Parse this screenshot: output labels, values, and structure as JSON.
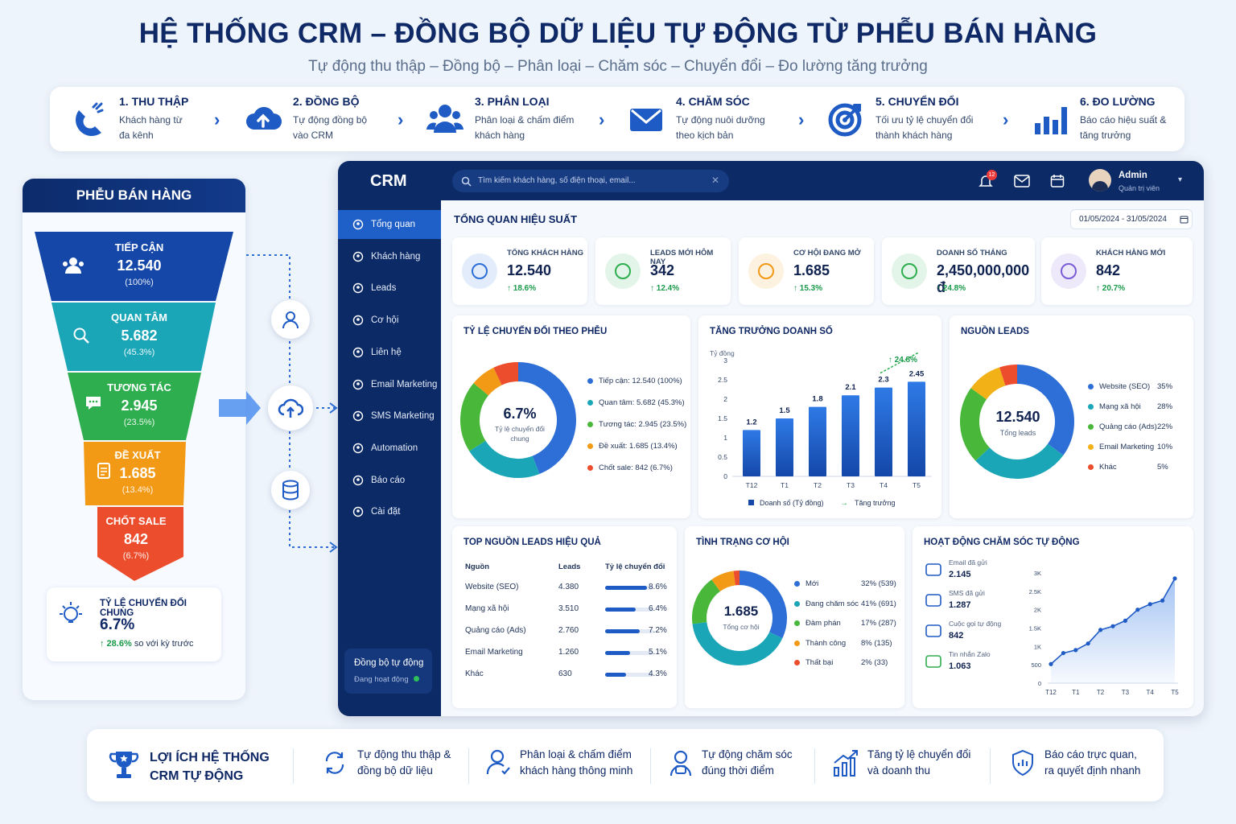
{
  "header": {
    "title": "HỆ THỐNG CRM – ĐỒNG BỘ DỮ LIỆU TỰ ĐỘNG TỪ PHỄU BÁN HÀNG",
    "subtitle": "Tự động thu thập – Đồng bộ – Phân loại – Chăm sóc – Chuyển đổi – Đo lường tăng trưởng"
  },
  "steps": [
    {
      "title": "1. THU THẬP",
      "desc1": "Khách hàng từ",
      "desc2": "đa kênh",
      "icon": "magnet-icon"
    },
    {
      "title": "2. ĐỒNG BỘ",
      "desc1": "Tự động đồng bộ",
      "desc2": "vào CRM",
      "icon": "cloud-upload-icon"
    },
    {
      "title": "3. PHÂN LOẠI",
      "desc1": "Phân loại & chấm điểm",
      "desc2": "khách hàng",
      "icon": "users-icon"
    },
    {
      "title": "4. CHĂM SÓC",
      "desc1": "Tự động nuôi dưỡng",
      "desc2": "theo kịch bản",
      "icon": "mail-icon"
    },
    {
      "title": "5. CHUYỂN ĐỔI",
      "desc1": "Tối ưu tỷ lệ chuyển đổi",
      "desc2": "thành khách hàng",
      "icon": "target-icon"
    },
    {
      "title": "6. ĐO LƯỜNG",
      "desc1": "Báo cáo hiệu suất &",
      "desc2": "tăng trưởng",
      "icon": "bar-chart-icon"
    }
  ],
  "funnel": {
    "title": "PHỄU BÁN HÀNG",
    "levels": [
      {
        "name": "TIẾP CẬN",
        "value": "12.540",
        "pct": "(100%)",
        "color": "#1447a8"
      },
      {
        "name": "QUAN TÂM",
        "value": "5.682",
        "pct": "(45.3%)",
        "color": "#1ba6b8"
      },
      {
        "name": "TƯƠNG TÁC",
        "value": "2.945",
        "pct": "(23.5%)",
        "color": "#2fae4f"
      },
      {
        "name": "ĐỀ XUẤT",
        "value": "1.685",
        "pct": "(13.4%)",
        "color": "#f29a16"
      },
      {
        "name": "CHỐT SALE",
        "value": "842",
        "pct": "(6.7%)",
        "color": "#ec4d2c"
      }
    ],
    "rate": {
      "label": "TỶ LỆ CHUYỂN ĐỔI CHUNG",
      "value": "6.7%",
      "change": "↑ 28.6%",
      "change_note": "so với kỳ trước"
    }
  },
  "app": {
    "logo": "CRM",
    "search_placeholder": "Tìm kiếm khách hàng, số điện thoại, email...",
    "notif_count": "12",
    "user_name": "Admin",
    "user_role": "Quản trị viên",
    "nav": [
      "Tổng quan",
      "Khách hàng",
      "Leads",
      "Cơ hội",
      "Liên hệ",
      "Email Marketing",
      "SMS Marketing",
      "Automation",
      "Báo cáo",
      "Cài đặt"
    ],
    "sync": {
      "title": "Đồng bộ tự động",
      "status": "Đang hoạt động"
    },
    "overview_title": "TỔNG QUAN HIỆU SUẤT",
    "date_range": "01/05/2024 - 31/05/2024",
    "kpis": [
      {
        "label": "TỔNG KHÁCH HÀNG",
        "value": "12.540",
        "change": "↑ 18.6%",
        "color": "#2d6fd6"
      },
      {
        "label": "LEADS MỚI HÔM NAY",
        "value": "342",
        "change": "↑ 12.4%",
        "color": "#2fae4f"
      },
      {
        "label": "CƠ HỘI ĐANG MỞ",
        "value": "1.685",
        "change": "↑ 15.3%",
        "color": "#f29a16"
      },
      {
        "label": "DOANH SỐ THÁNG",
        "value": "2,450,000,000 đ",
        "change": "↑ 24.8%",
        "color": "#2fae4f"
      },
      {
        "label": "KHÁCH HÀNG MỚI",
        "value": "842",
        "change": "↑ 20.7%",
        "color": "#7a5cd6"
      }
    ],
    "conversion": {
      "title": "TỶ LỆ CHUYỂN ĐỔI THEO PHỄU",
      "center_value": "6.7%",
      "center_label1": "Tỷ lệ chuyển đổi",
      "center_label2": "chung",
      "segments": [
        {
          "label": "Tiếp cận: 12.540 (100%)",
          "color": "#2d6fd6",
          "share": 44
        },
        {
          "label": "Quan tâm: 5.682 (45.3%)",
          "color": "#1ba6b8",
          "share": 22
        },
        {
          "label": "Tương tác: 2.945 (23.5%)",
          "color": "#49b83a",
          "share": 20
        },
        {
          "label": "Đề xuất: 1.685 (13.4%)",
          "color": "#f29a16",
          "share": 7
        },
        {
          "label": "Chốt sale: 842 (6.7%)",
          "color": "#ec4d2c",
          "share": 7
        }
      ]
    },
    "revenue": {
      "title": "TĂNG TRƯỞNG DOANH SỐ",
      "unit": "Tỷ đồng",
      "growth": "↑ 24.8%",
      "legend_bar": "Doanh số (Tỷ đồng)",
      "legend_line": "Tăng trưởng"
    },
    "sources": {
      "title": "NGUỒN LEADS",
      "center_value": "12.540",
      "center_label": "Tổng leads",
      "items": [
        {
          "name": "Website (SEO)",
          "pct": "35%",
          "color": "#2d6fd6",
          "share": 35
        },
        {
          "name": "Mạng xã hội",
          "pct": "28%",
          "color": "#1ba6b8",
          "share": 28
        },
        {
          "name": "Quảng cáo (Ads)",
          "pct": "22%",
          "color": "#49b83a",
          "share": 22
        },
        {
          "name": "Email Marketing",
          "pct": "10%",
          "color": "#f2b116",
          "share": 10
        },
        {
          "name": "Khác",
          "pct": "5%",
          "color": "#ec4d2c",
          "share": 5
        }
      ]
    },
    "top_sources": {
      "title": "TOP NGUỒN LEADS HIỆU QUẢ",
      "headers": [
        "Nguồn",
        "Leads",
        "Tỷ lệ chuyển đổi"
      ],
      "rows": [
        {
          "name": "Website (SEO)",
          "leads": "4.380",
          "rate": "8.6%",
          "r": 8.6
        },
        {
          "name": "Mạng xã hội",
          "leads": "3.510",
          "rate": "6.4%",
          "r": 6.4
        },
        {
          "name": "Quảng cáo (Ads)",
          "leads": "2.760",
          "rate": "7.2%",
          "r": 7.2
        },
        {
          "name": "Email Marketing",
          "leads": "1.260",
          "rate": "5.1%",
          "r": 5.1
        },
        {
          "name": "Khác",
          "leads": "630",
          "rate": "4.3%",
          "r": 4.3
        }
      ]
    },
    "opportunities": {
      "title": "TÌNH TRẠNG CƠ HỘI",
      "center_value": "1.685",
      "center_label": "Tổng cơ hội",
      "items": [
        {
          "name": "Mới",
          "val": "32% (539)",
          "color": "#2d6fd6",
          "share": 32
        },
        {
          "name": "Đang chăm sóc",
          "val": "41% (691)",
          "color": "#1ba6b8",
          "share": 41
        },
        {
          "name": "Đàm phán",
          "val": "17% (287)",
          "color": "#49b83a",
          "share": 17
        },
        {
          "name": "Thành công",
          "val": "8% (135)",
          "color": "#f29a16",
          "share": 8
        },
        {
          "name": "Thất bại",
          "val": "2% (33)",
          "color": "#ec4d2c",
          "share": 2
        }
      ]
    },
    "automation": {
      "title": "HOẠT ĐỘNG CHĂM SÓC TỰ ĐỘNG",
      "items": [
        {
          "label": "Email đã gửi",
          "value": "2.145"
        },
        {
          "label": "SMS đã gửi",
          "value": "1.287"
        },
        {
          "label": "Cuộc gọi tự động",
          "value": "842"
        },
        {
          "label": "Tin nhắn Zalo",
          "value": "1.063"
        }
      ]
    }
  },
  "benefits": {
    "title1": "LỢI ÍCH HỆ THỐNG",
    "title2": "CRM TỰ ĐỘNG",
    "items": [
      {
        "l1": "Tự động thu thập &",
        "l2": "đồng bộ dữ liệu"
      },
      {
        "l1": "Phân loại & chấm điểm",
        "l2": "khách hàng thông minh"
      },
      {
        "l1": "Tự động chăm sóc",
        "l2": "đúng thời điểm"
      },
      {
        "l1": "Tăng tỷ lệ chuyển đổi",
        "l2": "và doanh thu"
      },
      {
        "l1": "Báo cáo trực quan,",
        "l2": "ra quyết định nhanh"
      }
    ]
  },
  "chart_data": [
    {
      "type": "bar",
      "title": "TĂNG TRƯỞNG DOANH SỐ",
      "ylabel": "Tỷ đồng",
      "categories": [
        "T12",
        "T1",
        "T2",
        "T3",
        "T4",
        "T5"
      ],
      "series": [
        {
          "name": "Doanh số (Tỷ đồng)",
          "values": [
            1.2,
            1.5,
            1.8,
            2.1,
            2.3,
            2.45
          ]
        }
      ],
      "yticks": [
        "0",
        "0.5",
        "1",
        "1.5",
        "2",
        "2.5",
        "3"
      ],
      "ylim": [
        0,
        3
      ],
      "annotation": "↑ 24.8%"
    },
    {
      "type": "line",
      "title": "HOẠT ĐỘNG CHĂM SÓC TỰ ĐỘNG",
      "categories": [
        "T12",
        "T1",
        "T2",
        "T3",
        "T4",
        "T5"
      ],
      "x": [
        0,
        0.5,
        1,
        1.5,
        2,
        2.5,
        3,
        3.5,
        4,
        4.5,
        5
      ],
      "values": [
        520,
        820,
        900,
        1080,
        1450,
        1550,
        1700,
        2000,
        2150,
        2250,
        2850
      ],
      "yticks": [
        "0",
        "500",
        "1K",
        "1.5K",
        "2K",
        "2.5K",
        "3K"
      ],
      "ylim": [
        0,
        3000
      ]
    }
  ]
}
